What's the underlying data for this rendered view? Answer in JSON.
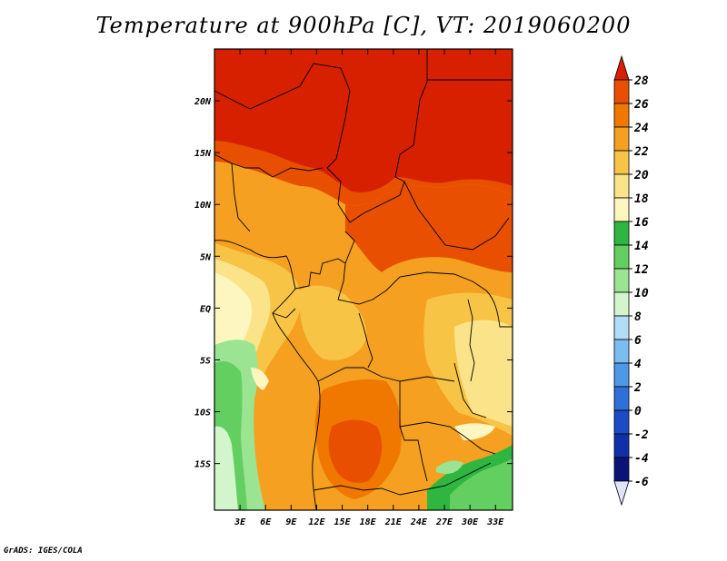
{
  "title": "Temperature at 900hPa [C], VT: 2019060200",
  "footer": "GrADS: IGES/COLA",
  "map": {
    "lon_range": [
      0,
      35
    ],
    "lat_range": [
      -19.5,
      25
    ],
    "lon_ticks": [
      {
        "value": 3,
        "label": "3E"
      },
      {
        "value": 6,
        "label": "6E"
      },
      {
        "value": 9,
        "label": "9E"
      },
      {
        "value": 12,
        "label": "12E"
      },
      {
        "value": 15,
        "label": "15E"
      },
      {
        "value": 18,
        "label": "18E"
      },
      {
        "value": 21,
        "label": "21E"
      },
      {
        "value": 24,
        "label": "24E"
      },
      {
        "value": 27,
        "label": "27E"
      },
      {
        "value": 30,
        "label": "30E"
      },
      {
        "value": 33,
        "label": "33E"
      }
    ],
    "lat_ticks": [
      {
        "value": 20,
        "label": "20N"
      },
      {
        "value": 15,
        "label": "15N"
      },
      {
        "value": 10,
        "label": "10N"
      },
      {
        "value": 5,
        "label": "5N"
      },
      {
        "value": 0,
        "label": "EQ"
      },
      {
        "value": -5,
        "label": "5S"
      },
      {
        "value": -10,
        "label": "10S"
      },
      {
        "value": -15,
        "label": "15S"
      }
    ]
  },
  "colorbar": {
    "levels": [
      "28",
      "26",
      "24",
      "22",
      "20",
      "18",
      "16",
      "14",
      "12",
      "10",
      "8",
      "6",
      "4",
      "2",
      "0",
      "-2",
      "-4",
      "-6"
    ],
    "colors": [
      "#d62000",
      "#e85000",
      "#f07800",
      "#f5a020",
      "#f7c445",
      "#fbe38a",
      "#fdf6c0",
      "#2fb640",
      "#63cf60",
      "#9be492",
      "#d2f5cc",
      "#b3dcf7",
      "#7cbdf1",
      "#4e98e8",
      "#2e6fd8",
      "#1b4cc5",
      "#0f30a8",
      "#0a1478",
      "#e0e4fa"
    ]
  }
}
